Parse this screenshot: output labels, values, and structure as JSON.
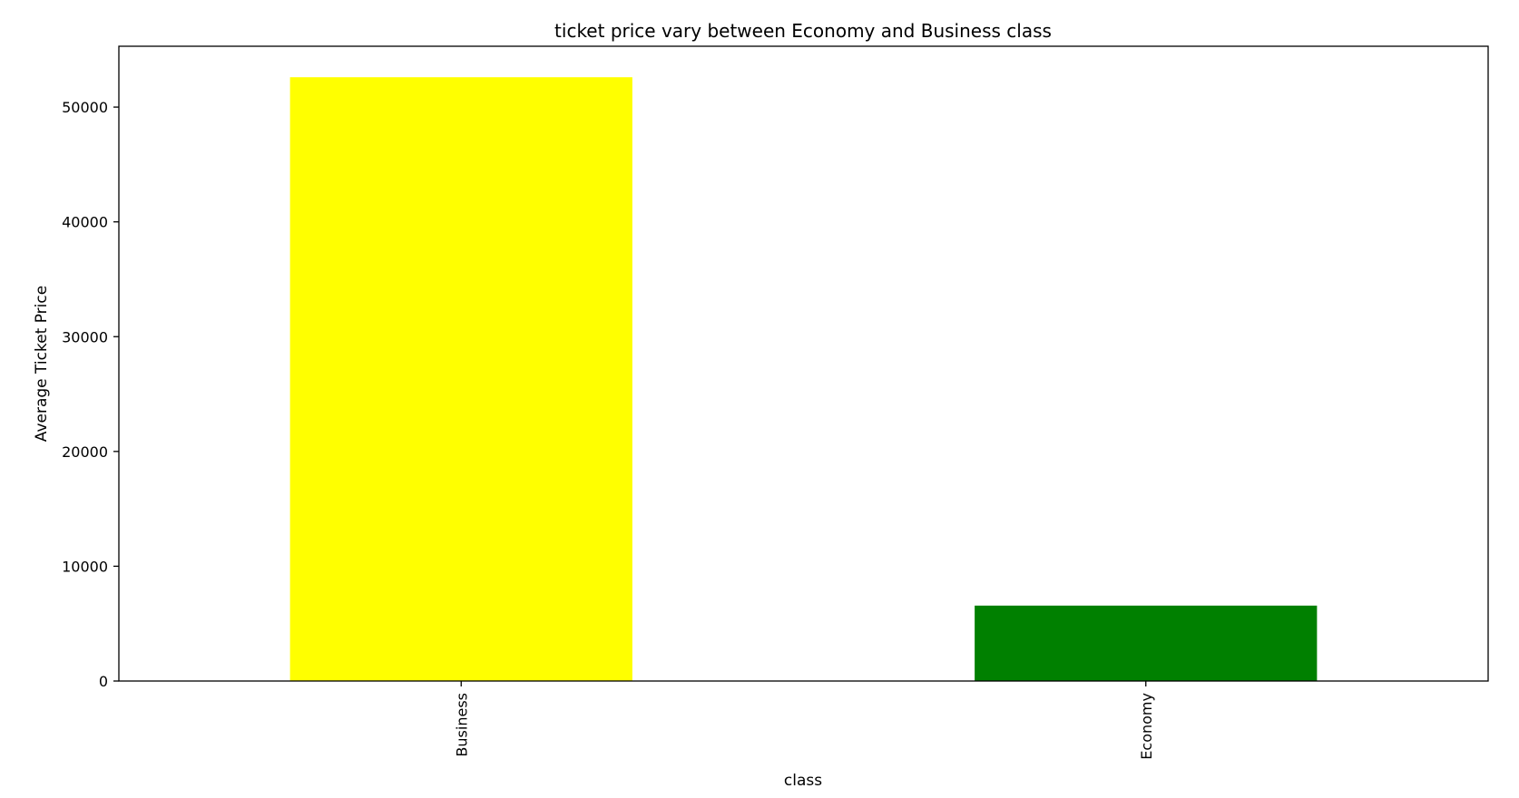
{
  "chart_data": {
    "type": "bar",
    "title": "ticket price vary between Economy and Business class",
    "xlabel": "class",
    "ylabel": "Average Ticket Price",
    "categories": [
      "Business",
      "Economy"
    ],
    "values": [
      52600,
      6570
    ],
    "colors": [
      "#ffff00",
      "#008000"
    ],
    "ylim": [
      0,
      55300
    ],
    "yticks": [
      0,
      10000,
      20000,
      30000,
      40000,
      50000
    ],
    "grid": false,
    "legend": "none"
  }
}
